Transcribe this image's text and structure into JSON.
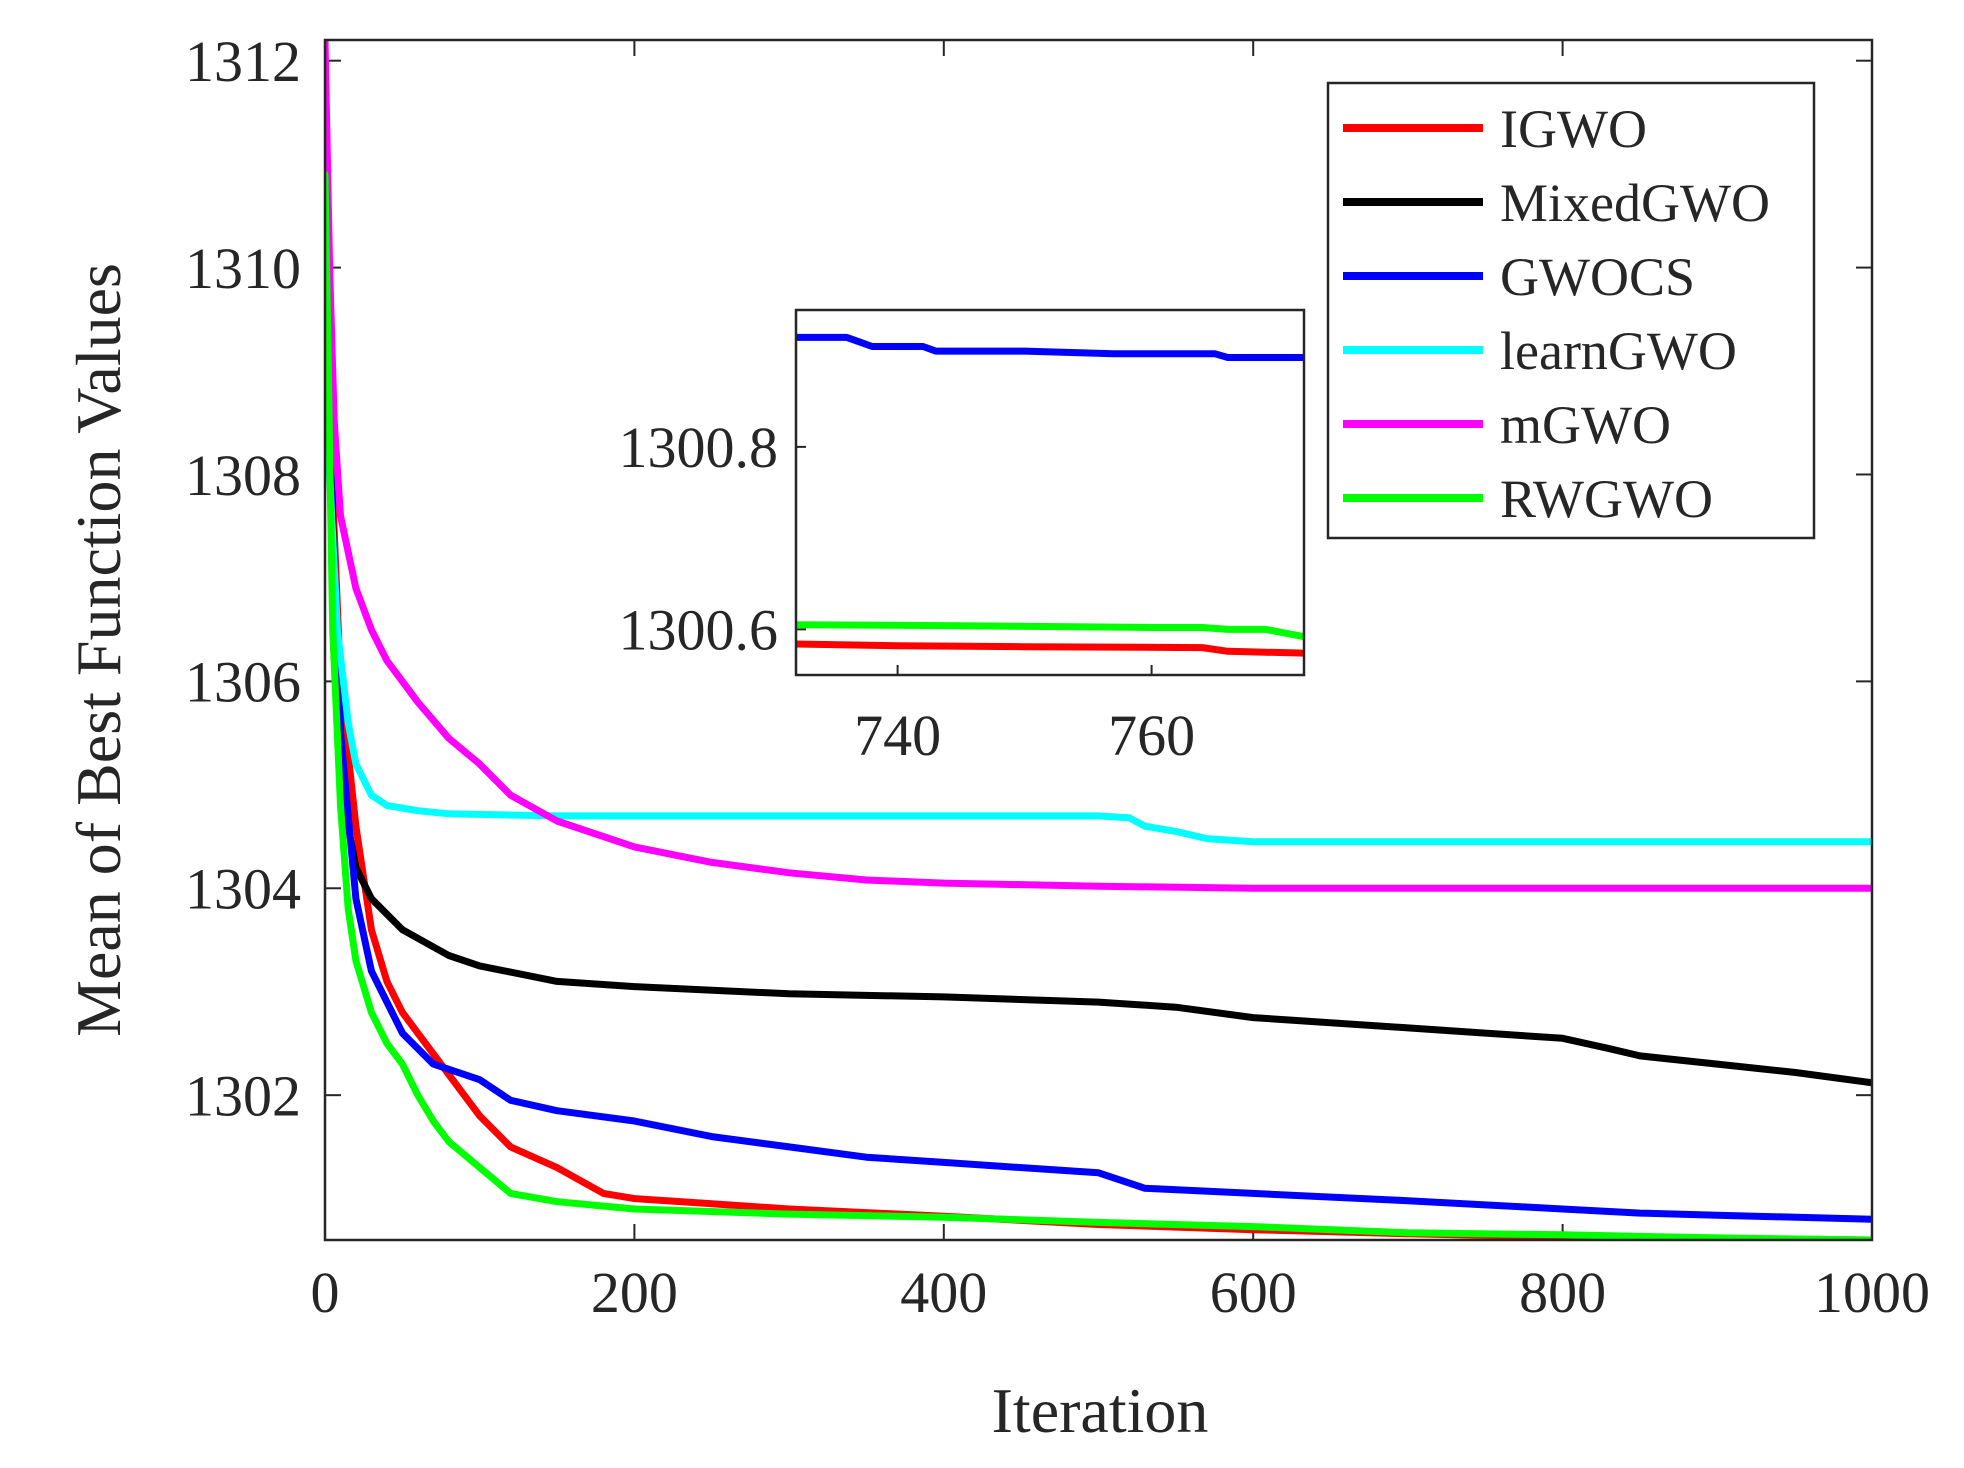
{
  "chart_data": {
    "type": "line",
    "xlabel": "Iteration",
    "ylabel": "Mean of Best Function Values",
    "xlim": [
      0,
      1000
    ],
    "ylim": [
      1300.6,
      1312.2
    ],
    "xticks": [
      0,
      200,
      400,
      600,
      800,
      1000
    ],
    "yticks": [
      1302,
      1304,
      1306,
      1308,
      1310,
      1312
    ],
    "xtick_labels": [
      "0",
      "200",
      "400",
      "600",
      "800",
      "1000"
    ],
    "ytick_labels": [
      "1302",
      "1304",
      "1306",
      "1308",
      "1310",
      "1312"
    ],
    "legend_position": "top-right",
    "series": [
      {
        "name": "IGWO",
        "color": "#ff0000",
        "points": [
          [
            0,
            1310.8
          ],
          [
            5,
            1307.8
          ],
          [
            10,
            1306.0
          ],
          [
            20,
            1304.6
          ],
          [
            30,
            1303.6
          ],
          [
            40,
            1303.1
          ],
          [
            50,
            1302.8
          ],
          [
            60,
            1302.6
          ],
          [
            75,
            1302.3
          ],
          [
            90,
            1302.0
          ],
          [
            100,
            1301.8
          ],
          [
            120,
            1301.5
          ],
          [
            150,
            1301.3
          ],
          [
            180,
            1301.05
          ],
          [
            200,
            1301.0
          ],
          [
            250,
            1300.95
          ],
          [
            300,
            1300.9
          ],
          [
            400,
            1300.83
          ],
          [
            500,
            1300.75
          ],
          [
            600,
            1300.7
          ],
          [
            700,
            1300.66
          ],
          [
            800,
            1300.63
          ],
          [
            900,
            1300.61
          ],
          [
            1000,
            1300.6
          ]
        ]
      },
      {
        "name": "MixedGWO",
        "color": "#000000",
        "points": [
          [
            0,
            1310.8
          ],
          [
            5,
            1307.5
          ],
          [
            10,
            1305.5
          ],
          [
            15,
            1304.6
          ],
          [
            20,
            1304.2
          ],
          [
            30,
            1303.9
          ],
          [
            50,
            1303.6
          ],
          [
            80,
            1303.35
          ],
          [
            100,
            1303.25
          ],
          [
            150,
            1303.1
          ],
          [
            200,
            1303.05
          ],
          [
            300,
            1302.98
          ],
          [
            400,
            1302.95
          ],
          [
            500,
            1302.9
          ],
          [
            550,
            1302.85
          ],
          [
            600,
            1302.75
          ],
          [
            700,
            1302.65
          ],
          [
            750,
            1302.6
          ],
          [
            800,
            1302.55
          ],
          [
            830,
            1302.45
          ],
          [
            850,
            1302.38
          ],
          [
            900,
            1302.3
          ],
          [
            950,
            1302.22
          ],
          [
            1000,
            1302.12
          ]
        ]
      },
      {
        "name": "GWOCS",
        "color": "#0000ff",
        "points": [
          [
            0,
            1310.8
          ],
          [
            5,
            1307.2
          ],
          [
            10,
            1305.5
          ],
          [
            20,
            1303.9
          ],
          [
            30,
            1303.2
          ],
          [
            40,
            1302.9
          ],
          [
            50,
            1302.6
          ],
          [
            70,
            1302.3
          ],
          [
            100,
            1302.15
          ],
          [
            120,
            1301.95
          ],
          [
            150,
            1301.85
          ],
          [
            200,
            1301.75
          ],
          [
            250,
            1301.6
          ],
          [
            300,
            1301.5
          ],
          [
            350,
            1301.4
          ],
          [
            400,
            1301.35
          ],
          [
            500,
            1301.25
          ],
          [
            530,
            1301.1
          ],
          [
            600,
            1301.05
          ],
          [
            700,
            1300.98
          ],
          [
            800,
            1300.9
          ],
          [
            850,
            1300.86
          ],
          [
            900,
            1300.84
          ],
          [
            1000,
            1300.8
          ]
        ]
      },
      {
        "name": "learnGWO",
        "color": "#00ffff",
        "points": [
          [
            0,
            1310.9
          ],
          [
            3,
            1308.0
          ],
          [
            8,
            1306.5
          ],
          [
            15,
            1305.6
          ],
          [
            20,
            1305.2
          ],
          [
            30,
            1304.9
          ],
          [
            40,
            1304.8
          ],
          [
            60,
            1304.75
          ],
          [
            80,
            1304.72
          ],
          [
            150,
            1304.7
          ],
          [
            300,
            1304.7
          ],
          [
            500,
            1304.7
          ],
          [
            520,
            1304.68
          ],
          [
            530,
            1304.6
          ],
          [
            550,
            1304.55
          ],
          [
            570,
            1304.48
          ],
          [
            600,
            1304.45
          ],
          [
            700,
            1304.45
          ],
          [
            1000,
            1304.45
          ]
        ]
      },
      {
        "name": "mGWO",
        "color": "#ff00ff",
        "points": [
          [
            0,
            1312.2
          ],
          [
            3,
            1310.0
          ],
          [
            6,
            1308.5
          ],
          [
            10,
            1307.6
          ],
          [
            20,
            1306.9
          ],
          [
            30,
            1306.5
          ],
          [
            40,
            1306.2
          ],
          [
            50,
            1306.0
          ],
          [
            60,
            1305.8
          ],
          [
            80,
            1305.45
          ],
          [
            100,
            1305.2
          ],
          [
            120,
            1304.9
          ],
          [
            150,
            1304.65
          ],
          [
            200,
            1304.4
          ],
          [
            250,
            1304.25
          ],
          [
            300,
            1304.15
          ],
          [
            350,
            1304.08
          ],
          [
            400,
            1304.05
          ],
          [
            500,
            1304.02
          ],
          [
            600,
            1304.0
          ],
          [
            800,
            1304.0
          ],
          [
            1000,
            1304.0
          ]
        ]
      },
      {
        "name": "RWGWO",
        "color": "#00ff00",
        "points": [
          [
            0,
            1310.9
          ],
          [
            5,
            1306.5
          ],
          [
            10,
            1304.8
          ],
          [
            15,
            1303.8
          ],
          [
            20,
            1303.3
          ],
          [
            30,
            1302.8
          ],
          [
            40,
            1302.5
          ],
          [
            50,
            1302.3
          ],
          [
            60,
            1302.0
          ],
          [
            70,
            1301.75
          ],
          [
            80,
            1301.55
          ],
          [
            100,
            1301.3
          ],
          [
            120,
            1301.05
          ],
          [
            150,
            1300.97
          ],
          [
            200,
            1300.9
          ],
          [
            300,
            1300.85
          ],
          [
            400,
            1300.82
          ],
          [
            500,
            1300.77
          ],
          [
            600,
            1300.73
          ],
          [
            700,
            1300.67
          ],
          [
            800,
            1300.65
          ],
          [
            900,
            1300.62
          ],
          [
            1000,
            1300.6
          ]
        ]
      }
    ],
    "inset": {
      "xlim": [
        732,
        772
      ],
      "ylim": [
        1300.55,
        1300.95
      ],
      "xticks": [
        740,
        760
      ],
      "xtick_labels": [
        "740",
        "760"
      ],
      "yticks": [
        1300.6,
        1300.8
      ],
      "ytick_labels": [
        "1300.6",
        "1300.8"
      ],
      "series": [
        {
          "name": "GWOCS",
          "color": "#0000ff",
          "points": [
            [
              732,
              1300.92
            ],
            [
              736,
              1300.92
            ],
            [
              737,
              1300.915
            ],
            [
              738,
              1300.91
            ],
            [
              742,
              1300.91
            ],
            [
              743,
              1300.905
            ],
            [
              750,
              1300.905
            ],
            [
              757,
              1300.902
            ],
            [
              765,
              1300.902
            ],
            [
              766,
              1300.898
            ],
            [
              772,
              1300.898
            ]
          ]
        },
        {
          "name": "RWGWO",
          "color": "#00ff00",
          "points": [
            [
              732,
              1300.605
            ],
            [
              745,
              1300.604
            ],
            [
              760,
              1300.602
            ],
            [
              764,
              1300.602
            ],
            [
              766,
              1300.6
            ],
            [
              769,
              1300.6
            ],
            [
              772,
              1300.592
            ]
          ]
        },
        {
          "name": "IGWO",
          "color": "#ff0000",
          "points": [
            [
              732,
              1300.584
            ],
            [
              740,
              1300.582
            ],
            [
              750,
              1300.581
            ],
            [
              764,
              1300.58
            ],
            [
              766,
              1300.576
            ],
            [
              772,
              1300.574
            ]
          ]
        }
      ]
    }
  }
}
